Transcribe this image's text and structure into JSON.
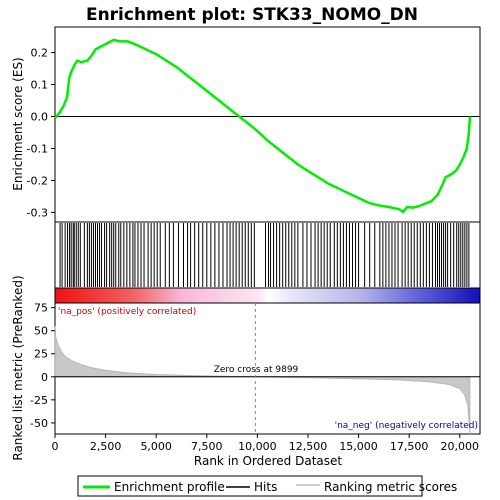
{
  "chart_data": {
    "type": "line",
    "title": "Enrichment plot: STK33_NOMO_DN",
    "xlabel": "Rank in Ordered Dataset",
    "xlim": [
      0,
      21000
    ],
    "x_ticks": [
      0,
      2500,
      5000,
      7500,
      10000,
      12500,
      15000,
      17500,
      20000
    ],
    "x_tick_labels": [
      "0",
      "2,500",
      "5,000",
      "7,500",
      "10,000",
      "12,500",
      "15,000",
      "17,500",
      "20,000"
    ],
    "enrichment_panel": {
      "ylabel": "Enrichment score (ES)",
      "ylim": [
        -0.33,
        0.28
      ],
      "y_ticks": [
        -0.3,
        -0.2,
        -0.1,
        0.0,
        0.1,
        0.2
      ],
      "y_tick_labels": [
        "-0.3",
        "-0.2",
        "-0.1",
        "0.0",
        "0.1",
        "0.2"
      ],
      "series": [
        {
          "name": "Enrichment profile",
          "color": "#00ee00",
          "x": [
            0,
            200,
            400,
            600,
            700,
            800,
            1000,
            1100,
            1300,
            1600,
            1800,
            2000,
            2300,
            2600,
            2900,
            3200,
            3600,
            4000,
            4500,
            5000,
            5500,
            6000,
            6500,
            7000,
            7500,
            8000,
            8500,
            9000,
            9500,
            9900,
            10500,
            11000,
            11500,
            12000,
            12500,
            13000,
            13500,
            14000,
            14500,
            15000,
            15500,
            16000,
            16500,
            17000,
            17200,
            17400,
            17700,
            18000,
            18300,
            18600,
            18900,
            19100,
            19300,
            19600,
            19800,
            20000,
            20200,
            20350,
            20450,
            20500
          ],
          "y": [
            -0.005,
            0.01,
            0.03,
            0.06,
            0.12,
            0.14,
            0.165,
            0.175,
            0.17,
            0.175,
            0.19,
            0.21,
            0.22,
            0.23,
            0.24,
            0.235,
            0.235,
            0.225,
            0.21,
            0.195,
            0.175,
            0.155,
            0.13,
            0.105,
            0.08,
            0.055,
            0.03,
            0.005,
            -0.02,
            -0.04,
            -0.075,
            -0.1,
            -0.125,
            -0.15,
            -0.17,
            -0.19,
            -0.21,
            -0.225,
            -0.24,
            -0.255,
            -0.27,
            -0.278,
            -0.283,
            -0.29,
            -0.298,
            -0.283,
            -0.285,
            -0.28,
            -0.272,
            -0.265,
            -0.245,
            -0.22,
            -0.19,
            -0.18,
            -0.17,
            -0.15,
            -0.125,
            -0.1,
            -0.05,
            0.0
          ]
        }
      ]
    },
    "hits_panel": {
      "legend_name": "Hits",
      "hit_ranks": [
        250,
        350,
        500,
        620,
        720,
        800,
        900,
        950,
        1050,
        1150,
        1250,
        1450,
        1600,
        1700,
        1800,
        1900,
        2000,
        2100,
        2200,
        2300,
        2450,
        2550,
        2700,
        2800,
        2900,
        3000,
        3150,
        3250,
        3400,
        3550,
        3700,
        3850,
        3950,
        4100,
        4250,
        4400,
        4600,
        4750,
        4900,
        5050,
        5200,
        5450,
        5650,
        5850,
        6100,
        6350,
        6550,
        6700,
        6900,
        7100,
        7300,
        7500,
        7700,
        7900,
        8100,
        8300,
        8500,
        8650,
        8800,
        8950,
        9100,
        9250,
        9400,
        9550,
        9700,
        9850,
        10400,
        10550,
        10650,
        10800,
        10950,
        11100,
        11250,
        11400,
        11550,
        11700,
        11850,
        12000,
        12250,
        12450,
        12650,
        12850,
        13000,
        13150,
        13300,
        13450,
        13600,
        13800,
        13950,
        14100,
        14250,
        14400,
        14550,
        14700,
        14850,
        15000,
        15300,
        15550,
        15800,
        16050,
        16200,
        16350,
        16500,
        16650,
        16800,
        16950,
        17150,
        17300,
        17450,
        17600,
        17750,
        17900,
        18050,
        18200,
        18350,
        18500,
        18650,
        18800,
        18900,
        19000,
        19100,
        19200,
        19300,
        19400,
        19550,
        19700,
        19850,
        19950,
        20050,
        20150,
        20250,
        20350,
        20450
      ]
    },
    "metric_panel": {
      "ylabel": "Ranked list metric (PreRanked)",
      "legend_name": "Ranking metric scores",
      "ylim": [
        -62,
        80
      ],
      "y_ticks": [
        -50,
        -25,
        0,
        25,
        50,
        75
      ],
      "y_tick_labels": [
        "-50",
        "-25",
        "0",
        "25",
        "50",
        "75"
      ],
      "x": [
        0,
        50,
        150,
        300,
        500,
        800,
        1200,
        1800,
        2500,
        3500,
        5000,
        7000,
        9000,
        9899,
        11000,
        13000,
        15000,
        17000,
        18500,
        19500,
        20000,
        20250,
        20400,
        20500
      ],
      "y": [
        55,
        42,
        35,
        28,
        22,
        18,
        14,
        10,
        7,
        4.5,
        2.5,
        1.2,
        0.4,
        0,
        -0.6,
        -1.3,
        -2.2,
        -3.5,
        -5.5,
        -8.5,
        -13,
        -20,
        -32,
        -62
      ],
      "zero_cross_rank": 9899,
      "zero_cross_label": "Zero cross at 9899",
      "pos_label": "'na_pos' (positively correlated)",
      "neg_label": "'na_neg' (negatively correlated)"
    },
    "colors": {
      "es_line": "#00ee00",
      "hit_line": "#000000",
      "metric_fill": "#c8c8c8",
      "pos_label": "#cc0000",
      "neg_label": "#0000aa",
      "frame": "#000000",
      "zero_line": "#000000"
    },
    "legend": {
      "placement": "bottom",
      "items": [
        {
          "label": "Enrichment profile",
          "style": "green-line"
        },
        {
          "label": "Hits",
          "style": "black-line"
        },
        {
          "label": "Ranking metric scores",
          "style": "grey-line"
        }
      ]
    }
  }
}
